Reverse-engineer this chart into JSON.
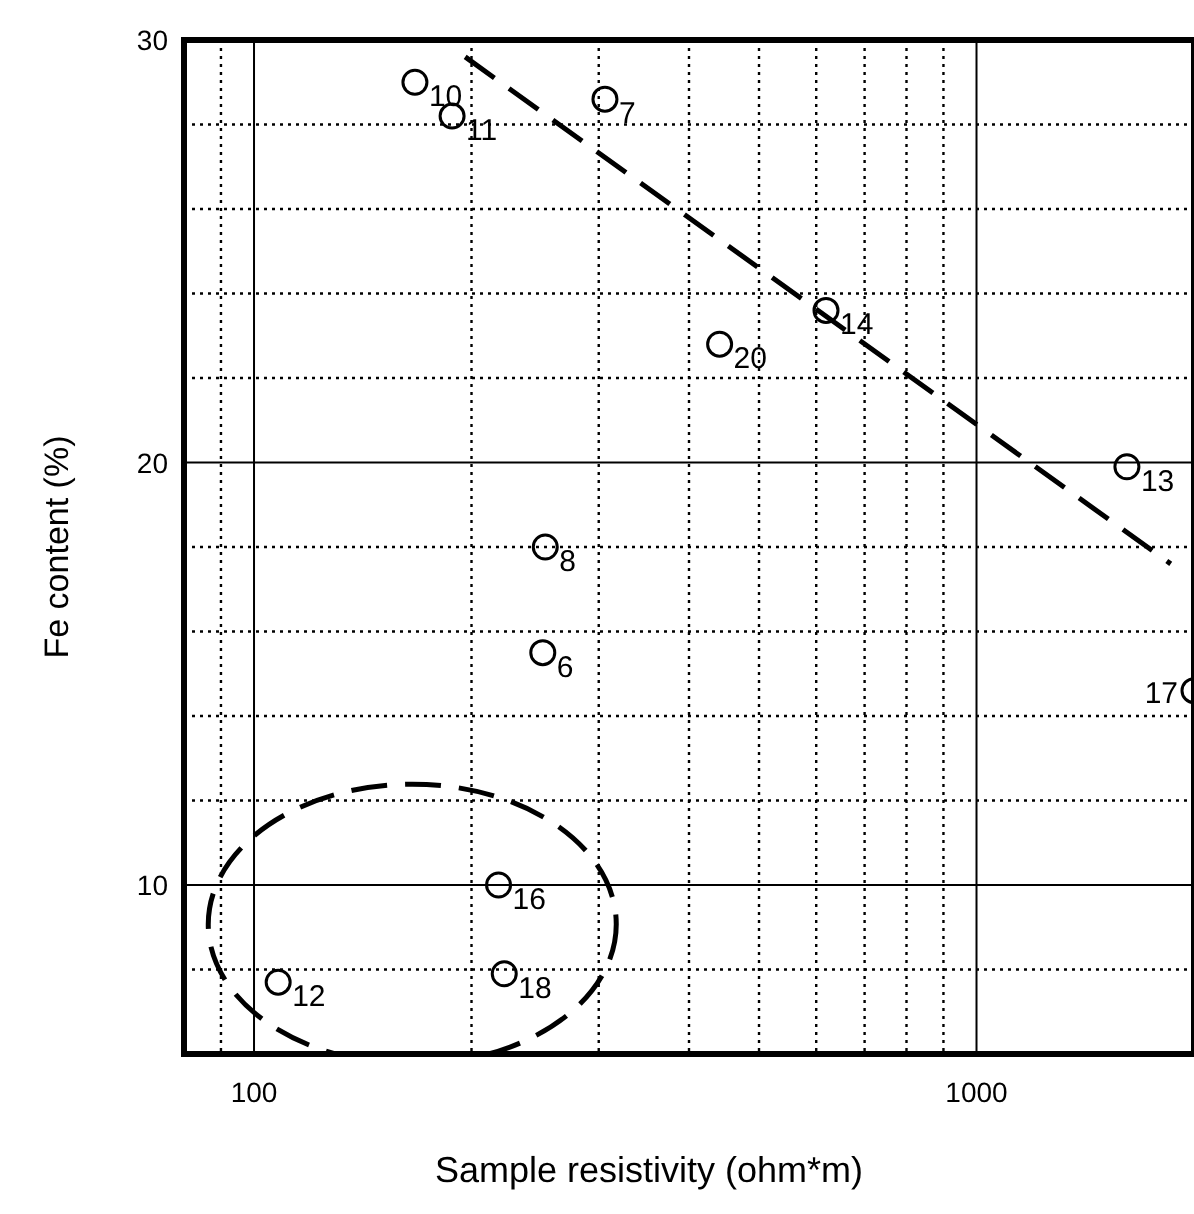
{
  "chart_data": {
    "type": "scatter",
    "xlabel": "Sample resistivity (ohm*m)",
    "ylabel": "Fe content (%)",
    "log": "x",
    "xlim": [
      80,
      2000
    ],
    "ylim": [
      6,
      30
    ],
    "xticks": [
      {
        "value": 90,
        "label": null
      },
      100,
      {
        "value": 200,
        "label": null
      },
      {
        "value": 300,
        "label": null
      },
      {
        "value": 400,
        "label": null
      },
      {
        "value": 500,
        "label": null
      },
      {
        "value": 600,
        "label": null
      },
      {
        "value": 700,
        "label": null
      },
      {
        "value": 800,
        "label": null
      },
      {
        "value": 900,
        "label": null
      },
      1000
    ],
    "yticks": [
      {
        "value": 6,
        "label": null
      },
      {
        "value": 8,
        "label": null
      },
      10,
      {
        "value": 12,
        "label": null
      },
      {
        "value": 14,
        "label": null
      },
      {
        "value": 16,
        "label": null
      },
      {
        "value": 18,
        "label": null
      },
      20,
      {
        "value": 22,
        "label": null
      },
      {
        "value": 24,
        "label": null
      },
      {
        "value": 26,
        "label": null
      },
      {
        "value": 28,
        "label": null
      },
      30
    ],
    "grid": true,
    "marker": "circle",
    "series": [
      {
        "color": "#000000",
        "x": [
          167,
          188,
          306,
          441,
          619,
          1615,
          253,
          251,
          2000,
          218,
          222,
          108
        ],
        "values": [
          29.0,
          28.2,
          28.6,
          22.8,
          23.6,
          19.9,
          18.0,
          15.5,
          14.6,
          10.0,
          7.9,
          7.7
        ]
      },
      {
        "type": "line",
        "color": "#000000",
        "line_style": "dashed",
        "marker": "none",
        "x": [
          196,
          1857
        ],
        "values": [
          29.6,
          17.6
        ]
      }
    ],
    "annotations": [
      {
        "text": "10",
        "x": 167,
        "y": 29.0
      },
      {
        "text": "11",
        "x": 188,
        "y": 28.2
      },
      {
        "text": "7",
        "x": 306,
        "y": 28.6
      },
      {
        "text": "20",
        "x": 441,
        "y": 22.8
      },
      {
        "text": "14",
        "x": 619,
        "y": 23.6
      },
      {
        "text": "13",
        "x": 1615,
        "y": 19.9
      },
      {
        "text": "8",
        "x": 253,
        "y": 18.0
      },
      {
        "text": "6",
        "x": 251,
        "y": 15.5
      },
      {
        "text": "17",
        "x": 2000,
        "y": 14.6
      },
      {
        "text": "16",
        "x": 218,
        "y": 10.0
      },
      {
        "text": "18",
        "x": 222,
        "y": 7.9
      },
      {
        "text": "12",
        "x": 108,
        "y": 7.7
      }
    ]
  }
}
